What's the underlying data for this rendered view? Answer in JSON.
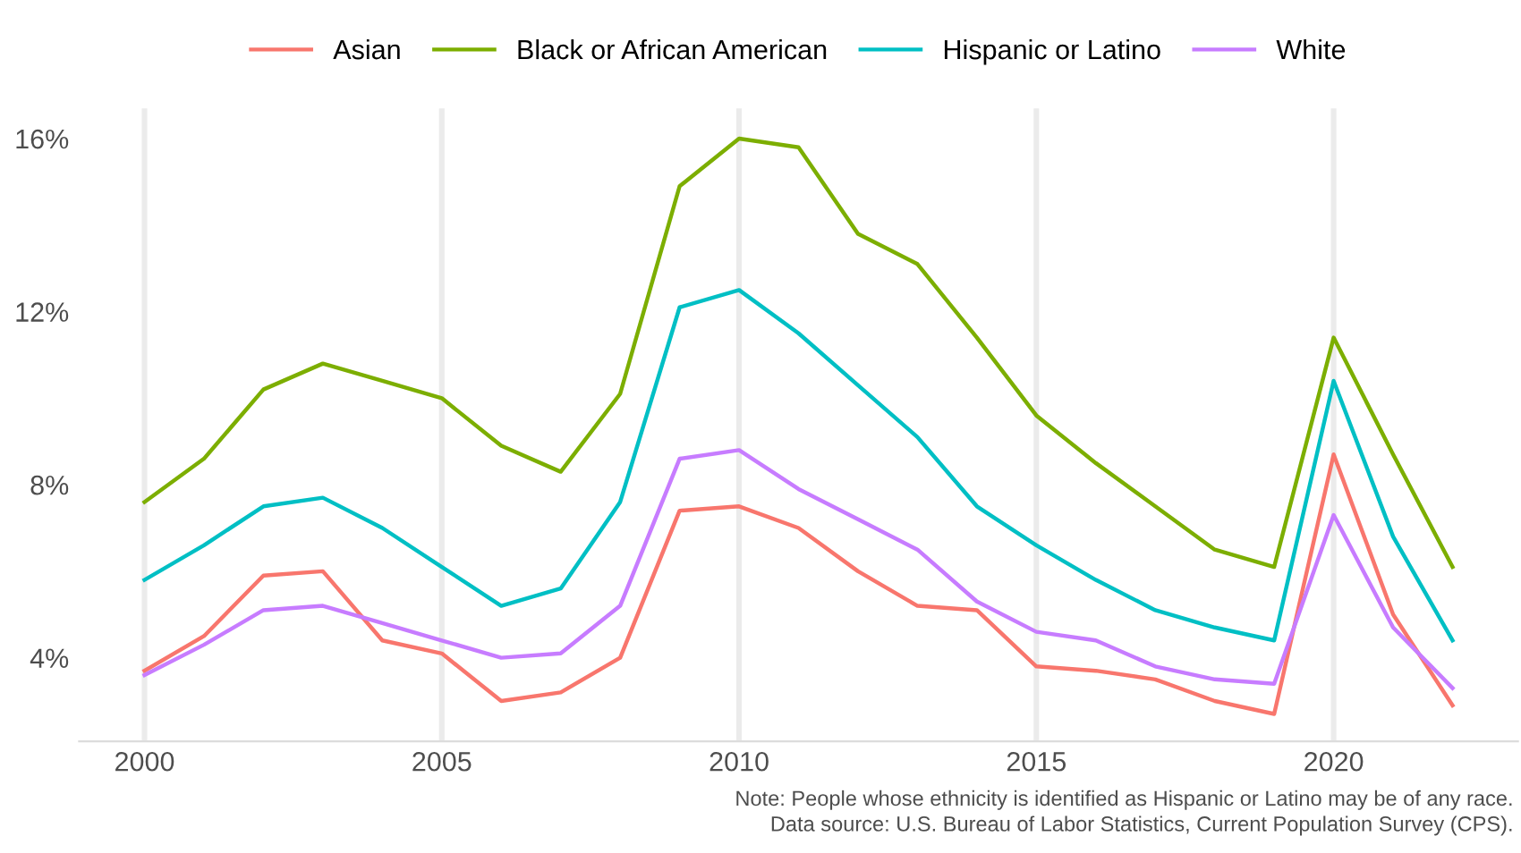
{
  "chart_data": {
    "type": "line",
    "x": [
      2000,
      2001,
      2002,
      2003,
      2004,
      2005,
      2006,
      2007,
      2008,
      2009,
      2010,
      2011,
      2012,
      2013,
      2014,
      2015,
      2016,
      2017,
      2018,
      2019,
      2020,
      2021,
      2022
    ],
    "series": [
      {
        "name": "Asian",
        "color": "#f8766d",
        "values": [
          3.7,
          4.5,
          5.9,
          6.0,
          4.4,
          4.1,
          3.0,
          3.2,
          4.0,
          7.4,
          7.5,
          7.0,
          6.0,
          5.2,
          5.1,
          3.8,
          3.7,
          3.5,
          3.0,
          2.7,
          8.7,
          5.0,
          2.9
        ]
      },
      {
        "name": "Black or African American",
        "color": "#7cae00",
        "values": [
          7.6,
          8.6,
          10.2,
          10.8,
          10.4,
          10.0,
          8.9,
          8.3,
          10.1,
          14.9,
          16.0,
          15.8,
          13.8,
          13.1,
          11.4,
          9.6,
          8.5,
          7.5,
          6.5,
          6.1,
          11.4,
          8.7,
          6.1
        ]
      },
      {
        "name": "Hispanic or Latino",
        "color": "#00bfc4",
        "values": [
          5.8,
          6.6,
          7.5,
          7.7,
          7.0,
          6.1,
          5.2,
          5.6,
          7.6,
          12.1,
          12.5,
          11.5,
          10.3,
          9.1,
          7.5,
          6.6,
          5.8,
          5.1,
          4.7,
          4.4,
          10.4,
          6.8,
          4.4
        ]
      },
      {
        "name": "White",
        "color": "#c77cff",
        "values": [
          3.6,
          4.3,
          5.1,
          5.2,
          4.8,
          4.4,
          4.0,
          4.1,
          5.2,
          8.6,
          8.8,
          7.9,
          7.2,
          6.5,
          5.3,
          4.6,
          4.4,
          3.8,
          3.5,
          3.4,
          7.3,
          4.7,
          3.3
        ]
      }
    ],
    "xlim": [
      1998.9,
      2023.1
    ],
    "xticks": [
      2000,
      2005,
      2010,
      2015,
      2020
    ],
    "ylim": [
      2.07,
      16.7
    ],
    "yticks": [
      {
        "value": 4,
        "label": "4%"
      },
      {
        "value": 8,
        "label": "8%"
      },
      {
        "value": 12,
        "label": "12%"
      },
      {
        "value": 16,
        "label": "16%"
      }
    ],
    "grid": "x",
    "legend": "top",
    "marker": "none",
    "line_style": "solid",
    "annotations": [
      "Note: People whose ethnicity is identified as Hispanic or Latino may be of any race.",
      "Data source: U.S. Bureau of Labor Statistics, Current Population Survey (CPS)."
    ]
  }
}
